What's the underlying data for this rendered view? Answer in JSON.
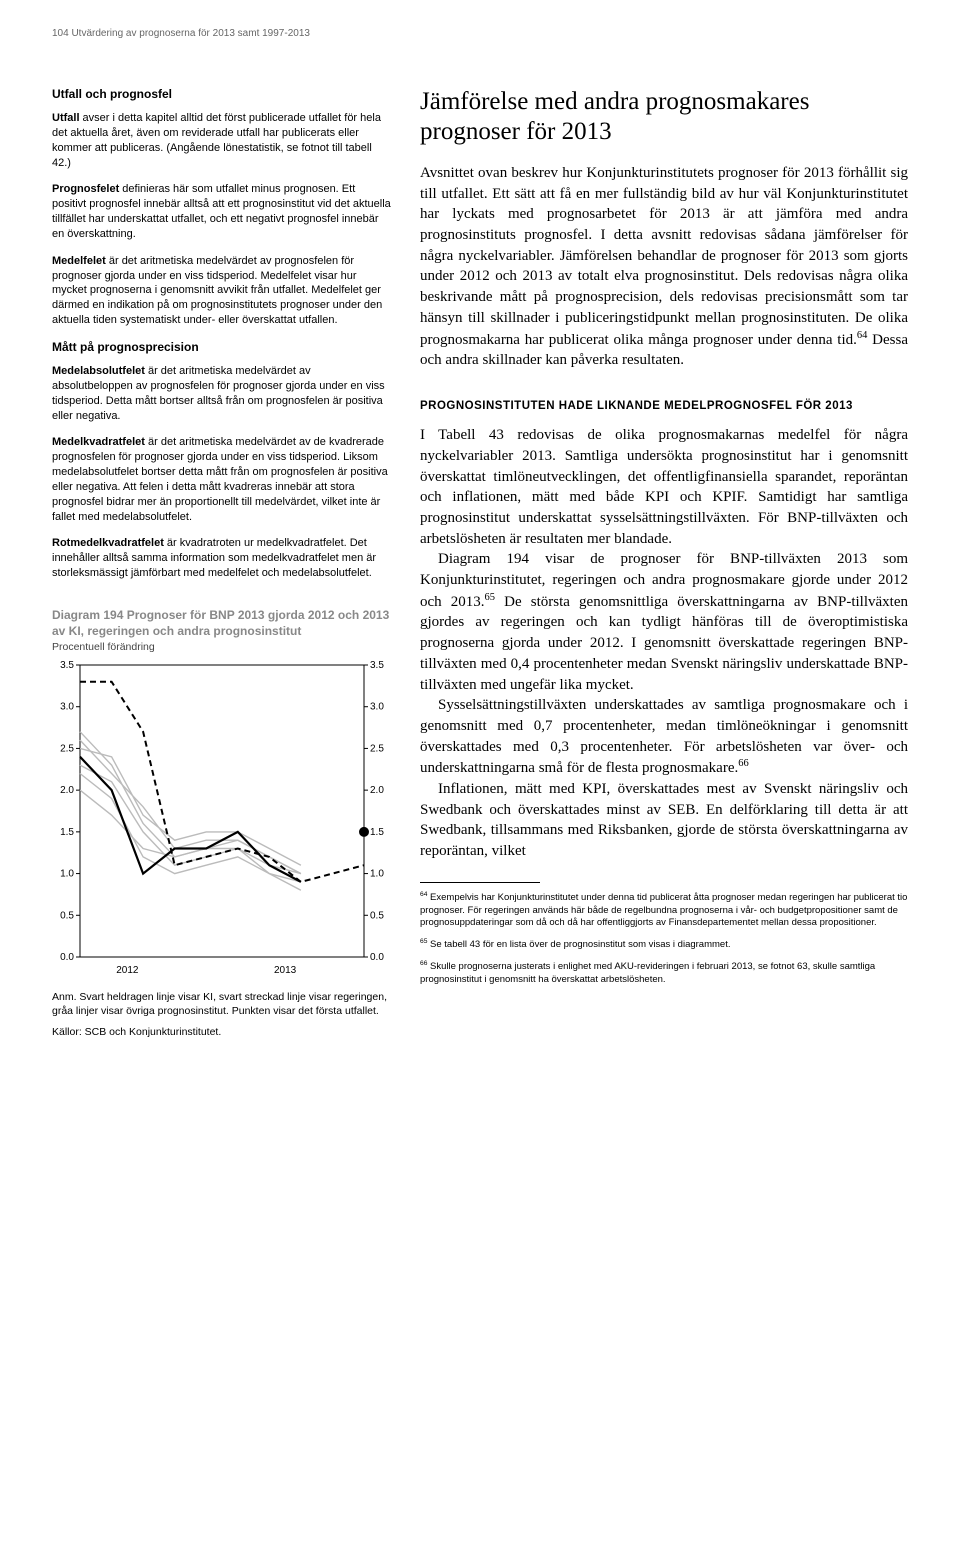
{
  "header": "104   Utvärdering av prognoserna för 2013 samt 1997-2013",
  "sidebar": {
    "h1": "Utfall och prognosfel",
    "p1": "<b>Utfall</b> avser i detta kapitel alltid det först publicerade utfallet för hela det aktuella året, även om reviderade utfall har publicerats eller kommer att publiceras. (Angående lönestatistik, se fotnot till tabell 42.)",
    "p2": "<b>Prognosfelet</b> definieras här som utfallet minus prognosen. Ett positivt prognosfel innebär alltså att ett prognosinstitut vid det aktuella tillfället har underskattat utfallet, och ett negativt prognosfel innebär en överskattning.",
    "p3": "<b>Medelfelet</b> är det aritmetiska medelvärdet av prognosfelen för prognoser gjorda under en viss tidsperiod. Medelfelet visar hur mycket prognoserna i genomsnitt avvikit från utfallet. Medelfelet ger därmed en indikation på om prognosinstitutets prognoser under den aktuella tiden systematiskt under- eller överskattat utfallen.",
    "h2": "Mått på prognosprecision",
    "p4": "<b>Medelabsolutfelet</b> är det aritmetiska medelvärdet av absolutbeloppen av prognosfelen för prognoser gjorda under en viss tidsperiod. Detta mått bortser alltså från om prognosfelen är positiva eller negativa.",
    "p5": "<b>Medelkvadratfelet</b> är det aritmetiska medelvärdet av de kvadrerade prognosfelen för prognoser gjorda under en viss tidsperiod. Liksom medelabsolutfelet bortser detta mått från om prognosfelen är positiva eller negativa. Att felen i detta mått kvadreras innebär att stora prognosfel bidrar mer än proportionellt till medelvärdet, vilket inte är fallet med medelabsolutfelet.",
    "p6": "<b>Rotmedelkvadratfelet</b> är kvadratroten ur medelkvadratfelet. Det innehåller alltså samma information som medelkvadratfelet men är storleksmässigt jämförbart med medelfelet och medelabsolutfelet."
  },
  "main": {
    "h2": "Jämförelse med andra prognosmakares prognoser för 2013",
    "para1": "Avsnittet ovan beskrev hur Konjunkturinstitutets prognoser för 2013 förhållit sig till utfallet. Ett sätt att få en mer fullständig bild av hur väl Konjunkturinstitutet har lyckats med prognosarbetet för 2013 är att jämföra med andra prognosinstituts prognosfel. I detta avsnitt redovisas sådana jämförelser för några nyckelvariabler. Jämförelsen behandlar de prognoser för 2013 som gjorts under 2012 och 2013 av totalt elva prognosinstitut. Dels redovisas några olika beskrivande mått på prognosprecision, dels redovisas precisionsmått som tar hänsyn till skillnader i publiceringstidpunkt mellan prognosinstituten. De olika prognosmakarna har publicerat olika många prognoser under denna tid.<sup>64</sup> Dessa och andra skillnader kan påverka resultaten.",
    "h3": "PROGNOSINSTITUTEN HADE LIKNANDE MEDELPROGNOSFEL FÖR 2013",
    "para2": "I Tabell 43 redovisas de olika prognosmakarnas medelfel för några nyckelvariabler 2013. Samtliga undersökta prognosinstitut har i genomsnitt överskattat timlöneutvecklingen, det offentligfinansiella sparandet, reporäntan och inflationen, mätt med både KPI och KPIF. Samtidigt har samtliga prognosinstitut underskattat sysselsättningstillväxten. För BNP-tillväxten och arbetslösheten är resultaten mer blandade.",
    "para3": "Diagram 194 visar de prognoser för BNP-tillväxten 2013 som Konjunkturinstitutet, regeringen och andra prognosmakare gjorde under 2012 och 2013.<sup>65</sup> De största genomsnittliga överskattningarna av BNP-tillväxten gjordes av regeringen och kan tydligt hänföras till de överoptimistiska prognoserna gjorda under 2012. I genomsnitt överskattade regeringen BNP-tillväxten med 0,4 procentenheter medan Svenskt näringsliv underskattade BNP-tillväxten med ungefär lika mycket.",
    "para4": "Sysselsättningstillväxten underskattades av samtliga prognosmakare och i genomsnitt med 0,7 procentenheter, medan timlöneökningar i genomsnitt överskattades med 0,3 procentenheter. För arbetslösheten var över- och underskattningarna små för de flesta prognosmakare.<sup>66</sup>",
    "para5": "Inflationen, mätt med KPI, överskattades mest av Svenskt näringsliv och Swedbank och överskattades minst av SEB. En delförklaring till detta är att Swedbank, tillsammans med Riksbanken, gjorde de största överskattningarna av reporäntan, vilket"
  },
  "footnotes": {
    "f64": "<sup>64</sup> Exempelvis har Konjunkturinstitutet under denna tid publicerat åtta prognoser medan regeringen har publicerat tio prognoser. För regeringen används här både de regelbundna prognoserna i vår- och budgetpropositioner samt de prognosuppdateringar som då och då har offentliggjorts av Finansdepartementet mellan dessa propositioner.",
    "f65": "<sup>65</sup> Se tabell 43 för en lista över de prognosinstitut som visas i diagrammet.",
    "f66": "<sup>66</sup> Skulle prognoserna justerats i enlighet med AKU-revideringen i februari 2013, se fotnot 63, skulle samtliga prognosinstitut i genomsnitt ha överskattat arbetslösheten."
  },
  "chart": {
    "title": "Diagram 194 Prognoser för BNP 2013 gjorda 2012 och 2013 av KI, regeringen och andra prognosinstitut",
    "subtitle": "Procentuell förändring",
    "caption": "Anm. Svart heldragen linje visar KI, svart streckad linje visar regeringen, gråa linjer visar övriga prognosinstitut. Punkten visar det första utfallet.",
    "source": "Källor: SCB och Konjunkturinstitutet.",
    "type": "line",
    "ylim": [
      0.0,
      3.5
    ],
    "ytick_step": 0.5,
    "yticks": [
      "3.5",
      "3.0",
      "2.5",
      "2.0",
      "1.5",
      "1.0",
      "0.5",
      "0.0"
    ],
    "xlabels": [
      "2012",
      "2013"
    ],
    "background_color": "#ffffff",
    "grid_color": "#000000",
    "series": {
      "ki": {
        "color": "#000000",
        "dash": "none",
        "width": 2.2,
        "points": [
          2.4,
          2.0,
          1.0,
          1.3,
          1.3,
          1.5,
          1.1,
          0.9
        ]
      },
      "reg": {
        "color": "#000000",
        "dash": "6,4",
        "width": 2.0,
        "points": [
          3.3,
          3.3,
          2.7,
          1.1,
          1.2,
          1.3,
          1.2,
          0.9,
          1.0,
          1.1
        ]
      },
      "g1": {
        "color": "#bbbbbb",
        "dash": "none",
        "width": 1.4,
        "points": [
          2.6,
          2.2,
          1.8,
          1.3,
          1.4,
          1.4,
          1.2,
          1.0
        ]
      },
      "g2": {
        "color": "#bbbbbb",
        "dash": "none",
        "width": 1.4,
        "points": [
          2.3,
          2.1,
          1.5,
          1.1,
          1.2,
          1.3,
          1.0,
          0.9
        ]
      },
      "g3": {
        "color": "#bbbbbb",
        "dash": "none",
        "width": 1.4,
        "points": [
          2.5,
          2.4,
          1.7,
          1.4,
          1.5,
          1.5,
          1.3,
          1.1
        ]
      },
      "g4": {
        "color": "#bbbbbb",
        "dash": "none",
        "width": 1.4,
        "points": [
          2.2,
          1.9,
          1.2,
          1.0,
          1.1,
          1.2,
          1.0,
          0.8
        ]
      },
      "g5": {
        "color": "#bbbbbb",
        "dash": "none",
        "width": 1.4,
        "points": [
          2.0,
          1.7,
          1.3,
          1.2,
          1.3,
          1.3,
          1.1,
          1.0
        ]
      },
      "g6": {
        "color": "#bbbbbb",
        "dash": "none",
        "width": 1.4,
        "points": [
          2.7,
          2.3,
          1.6,
          1.2,
          1.3,
          1.4,
          1.2,
          1.0
        ]
      }
    },
    "outcome_point": {
      "x_index": 9,
      "y": 1.5,
      "color": "#000000",
      "size": 5
    }
  }
}
